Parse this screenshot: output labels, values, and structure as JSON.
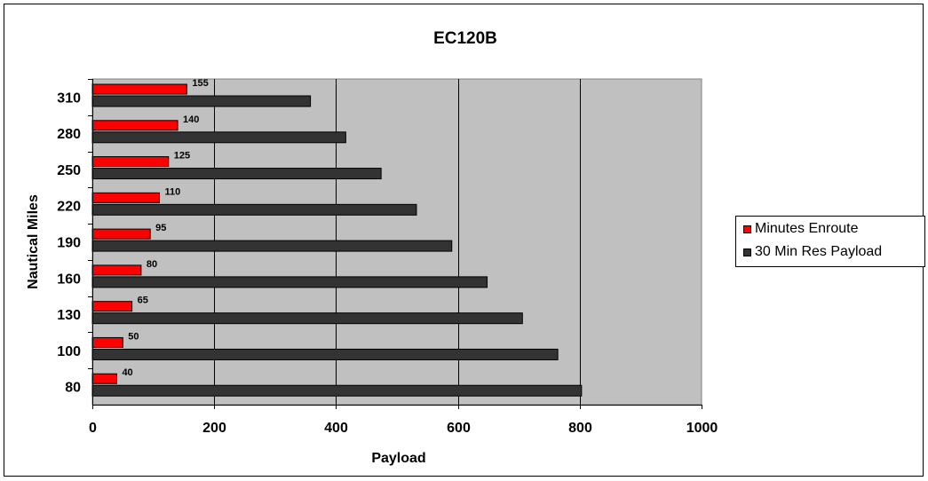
{
  "chart_data": {
    "type": "bar",
    "orientation": "horizontal",
    "title": "EC120B",
    "xlabel": "Payload",
    "ylabel": "Nautical Miles",
    "categories": [
      "80",
      "100",
      "130",
      "160",
      "190",
      "220",
      "250",
      "280",
      "310"
    ],
    "xlim": [
      0,
      1000
    ],
    "xticks": [
      "0",
      "200",
      "400",
      "600",
      "800",
      "1000"
    ],
    "grid": "vertical",
    "legend": "right",
    "series": [
      {
        "name": "Minutes Enroute",
        "color": "#ff0000",
        "values": [
          40,
          50,
          65,
          80,
          95,
          110,
          125,
          140,
          155
        ],
        "labels": [
          "40",
          "50",
          "65",
          "80",
          "95",
          "110",
          "125",
          "140",
          "155"
        ]
      },
      {
        "name": "30 Min Res Payload",
        "color": "#333333",
        "values": [
          803,
          764,
          706,
          648,
          590,
          532,
          474,
          416,
          358
        ]
      }
    ],
    "plot_background": "#c0c0c0"
  }
}
